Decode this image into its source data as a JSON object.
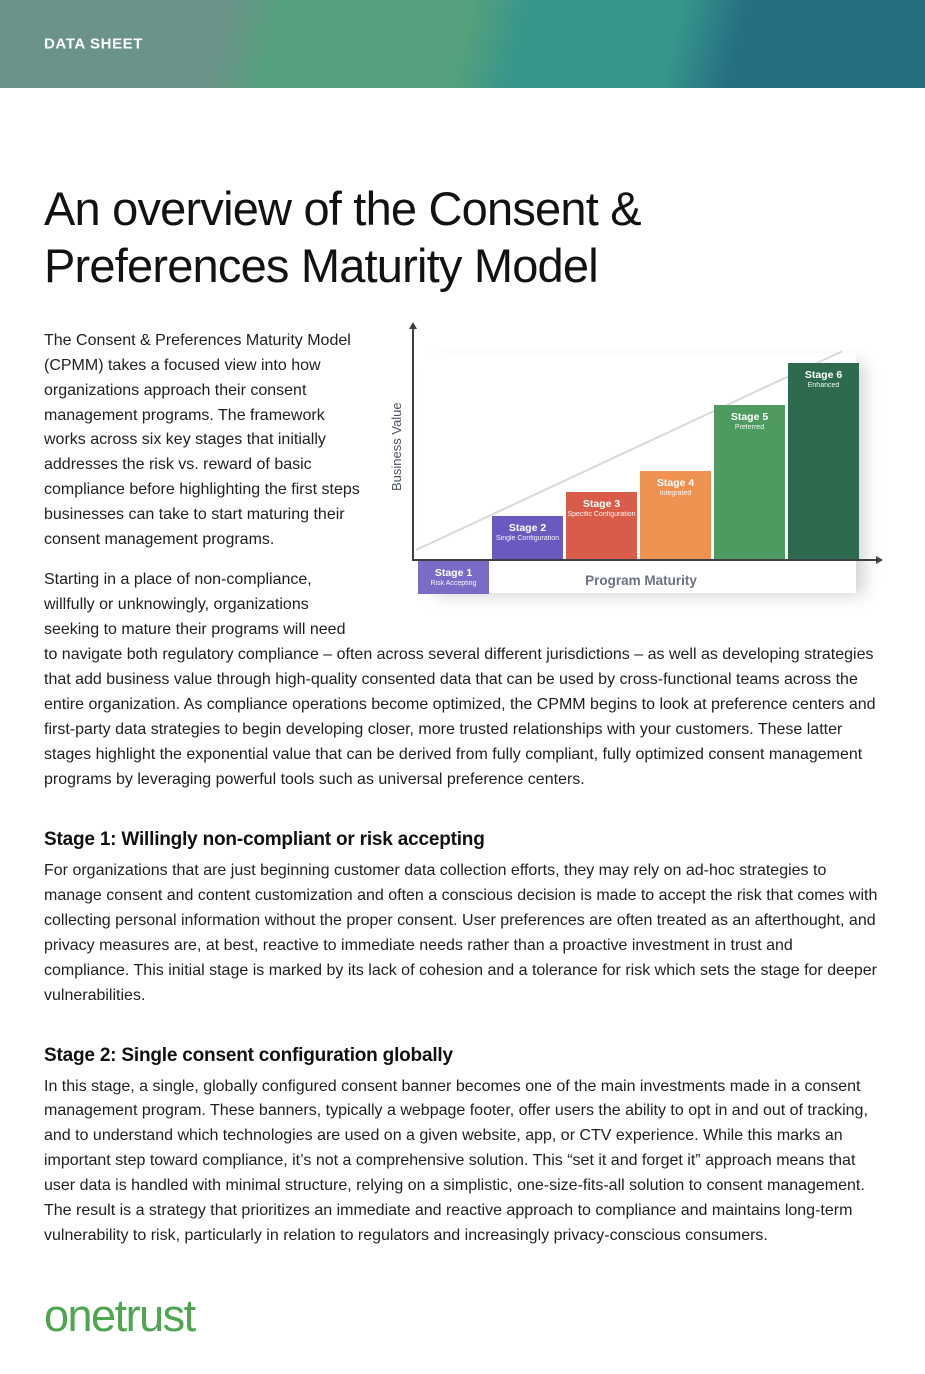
{
  "page": {
    "eyebrow": "DATA SHEET",
    "title": "An overview of the Consent & Preferences Maturity Model",
    "logo": "onetrust"
  },
  "intro": {
    "p1": "The Consent & Preferences Maturity Model (CPMM) takes a focused view into how organizations approach their consent management programs. The framework works across six key stages that initially addresses the risk vs. reward of basic compliance before highlighting the first steps businesses can take to start maturing their consent management programs.",
    "p2": "Starting in a place of non-compliance, willfully or unknowingly, organizations seeking to mature their programs will need to navigate both regulatory compliance – often across several different jurisdictions – as well as developing strategies that add business value through high-quality consented data that can be used by cross-functional teams across the entire organization. As compliance operations become optimized, the CPMM begins to look at preference centers and first-party data strategies to begin developing closer, more trusted relationships with your customers. These latter stages highlight the exponential value that can be derived from fully compliant, fully optimized consent management programs by leveraging powerful tools such as universal preference centers."
  },
  "sections": [
    {
      "heading": "Stage 1: Willingly non-compliant or risk accepting",
      "body": "For organizations that are just beginning customer data collection efforts, they may rely on ad-hoc strategies to manage consent and content customization and often a conscious decision is made to accept the risk that comes with collecting personal information without the proper consent. User preferences are often treated as an afterthought, and privacy measures are, at best, reactive to immediate needs rather than a proactive investment in trust and compliance. This initial stage is marked by its lack of cohesion and a tolerance for risk which sets the stage for deeper vulnerabilities."
    },
    {
      "heading": "Stage 2: Single consent configuration globally",
      "body": "In this stage, a single, globally configured consent banner becomes one of the main investments made in a consent management program. These banners, typically a webpage footer, offer users the ability to opt in and out of tracking, and to understand which technologies are used on a given website, app, or CTV experience. While this marks an important step toward compliance, it’s not a comprehensive solution. This “set it and forget it” approach means that user data is handled with minimal structure, relying on a simplistic, one-size-fits-all solution to consent management. The result is a strategy that prioritizes an immediate and reactive approach to compliance and maintains long-term vulnerability to risk, particularly in relation to regulators and increasingly privacy-conscious consumers."
    }
  ],
  "chart_data": {
    "type": "bar",
    "title": "Consent & Preferences Maturity Model stages",
    "xlabel": "Program Maturity",
    "ylabel": "Business Value",
    "categories": [
      "Stage 1",
      "Stage 2",
      "Stage 3",
      "Stage 4",
      "Stage 5",
      "Stage 6"
    ],
    "values": [
      -1.1,
      1.5,
      2.3,
      3.0,
      5.2,
      6.6
    ],
    "ylim": [
      -1.5,
      7.5
    ],
    "grid": false,
    "legend": "none",
    "stages": [
      {
        "label": "Stage 1",
        "sublabel": "Risk Accepting",
        "color": "#7b6bc6",
        "value": -1.1
      },
      {
        "label": "Stage 2",
        "sublabel": "Single Configuration",
        "color": "#6a5abf",
        "value": 1.5
      },
      {
        "label": "Stage 3",
        "sublabel": "Specific Configuration",
        "color": "#d95b49",
        "value": 2.3
      },
      {
        "label": "Stage 4",
        "sublabel": "Integrated",
        "color": "#ef9150",
        "value": 3.0
      },
      {
        "label": "Stage 5",
        "sublabel": "Preferred",
        "color": "#4d9b60",
        "value": 5.2
      },
      {
        "label": "Stage 6",
        "sublabel": "Enhanced",
        "color": "#2e6a4d",
        "value": 6.6
      }
    ]
  },
  "colors": {
    "accent_green": "#4fa551",
    "header_left": "#6b9389",
    "header_mid_green": "#55a07d",
    "header_teal": "#37968a",
    "header_dark_teal": "#256f83",
    "axis": "#3f3f46",
    "axis_label": "#6b7280"
  }
}
